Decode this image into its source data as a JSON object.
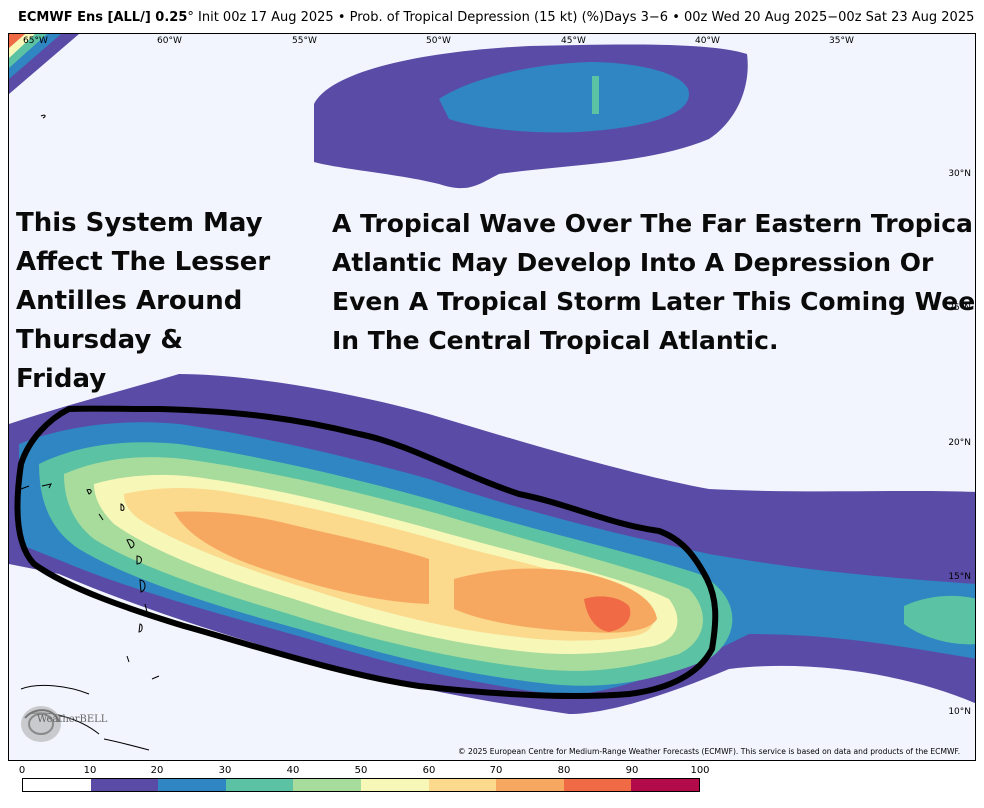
{
  "header": {
    "model": "ECMWF Ens [ALL/] 0.25",
    "degree": "°",
    "rest": " Init 00z 17 Aug 2025 • Prob. of Tropical Depression (15 kt) (%)Days 3−6 • 00z Wed 20 Aug 2025−00z Sat 23 Aug 2025"
  },
  "axes": {
    "longitudes": [
      "65°W",
      "60°W",
      "55°W",
      "50°W",
      "45°W",
      "40°W",
      "35°W"
    ],
    "latitudes": [
      "30°N",
      "25°N",
      "20°N",
      "15°N",
      "10°N"
    ]
  },
  "annotations": {
    "left_lines": [
      "This System May",
      "Affect The Lesser",
      "Antilles Around",
      "Thursday &",
      "Friday"
    ],
    "right_lines": [
      "A Tropical Wave Over The Far Eastern Tropical",
      "Atlantic May Develop Into A Depression Or",
      "Even A Tropical Storm Later This Coming Week",
      "In The Central Tropical Atlantic."
    ]
  },
  "copyright": "© 2025 European Centre for Medium-Range Weather Forecasts (ECMWF). This service is based on data and products of the ECMWF.",
  "logo": {
    "text": "WeatherBELL",
    "icon": "weatherbell-swirl-logo"
  },
  "legend": {
    "ticks": [
      "0",
      "10",
      "20",
      "30",
      "40",
      "50",
      "60",
      "70",
      "80",
      "90",
      "100"
    ],
    "colors": [
      "#ffffff",
      "#5a4ca6",
      "#2f86c2",
      "#5bc2a3",
      "#a8dc9c",
      "#f7f7b8",
      "#fbd98d",
      "#f7a860",
      "#ef6a45",
      "#b30b4a"
    ]
  },
  "map_colors": {
    "background": "#f2f5fd",
    "outline": "#000000"
  }
}
